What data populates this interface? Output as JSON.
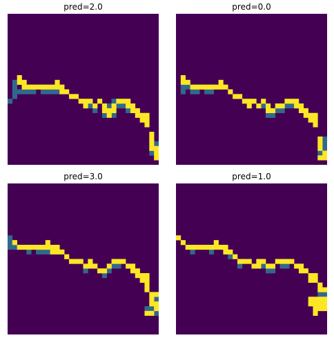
{
  "chart_data": [
    {
      "type": "heatmap",
      "title": "pred=2.0",
      "grid_size": [
        32,
        32
      ],
      "colormap": [
        "#440154",
        "#31688e",
        "#fde725"
      ],
      "cells": {
        "yellow": [
          [
            2,
            13
          ],
          [
            2,
            14
          ],
          [
            3,
            14
          ],
          [
            3,
            15
          ],
          [
            4,
            15
          ],
          [
            5,
            15
          ],
          [
            6,
            15
          ],
          [
            7,
            15
          ],
          [
            8,
            15
          ],
          [
            9,
            15
          ],
          [
            10,
            14
          ],
          [
            10,
            15
          ],
          [
            11,
            15
          ],
          [
            11,
            16
          ],
          [
            12,
            16
          ],
          [
            13,
            17
          ],
          [
            14,
            17
          ],
          [
            15,
            18
          ],
          [
            16,
            18
          ],
          [
            16,
            19
          ],
          [
            17,
            18
          ],
          [
            18,
            19
          ],
          [
            19,
            18
          ],
          [
            20,
            19
          ],
          [
            20,
            20
          ],
          [
            21,
            20
          ],
          [
            21,
            21
          ],
          [
            22,
            19
          ],
          [
            22,
            20
          ],
          [
            23,
            18
          ],
          [
            24,
            18
          ],
          [
            25,
            18
          ],
          [
            25,
            19
          ],
          [
            26,
            19
          ],
          [
            26,
            20
          ],
          [
            27,
            20
          ],
          [
            27,
            21
          ],
          [
            28,
            21
          ],
          [
            28,
            22
          ],
          [
            29,
            21
          ],
          [
            29,
            22
          ],
          [
            29,
            23
          ],
          [
            30,
            25
          ],
          [
            30,
            26
          ],
          [
            30,
            27
          ],
          [
            30,
            28
          ],
          [
            31,
            28
          ],
          [
            31,
            29
          ],
          [
            31,
            30
          ]
        ],
        "teal": [
          [
            0,
            18
          ],
          [
            1,
            17
          ],
          [
            1,
            16
          ],
          [
            1,
            15
          ],
          [
            1,
            14
          ],
          [
            2,
            16
          ],
          [
            3,
            16
          ],
          [
            4,
            16
          ],
          [
            5,
            16
          ],
          [
            7,
            16
          ],
          [
            8,
            16
          ],
          [
            9,
            16
          ],
          [
            10,
            16
          ],
          [
            17,
            19
          ],
          [
            18,
            20
          ],
          [
            20,
            21
          ],
          [
            21,
            19
          ],
          [
            22,
            21
          ],
          [
            22,
            18
          ],
          [
            23,
            19
          ],
          [
            24,
            19
          ],
          [
            25,
            20
          ],
          [
            30,
            29
          ],
          [
            31,
            27
          ],
          [
            31,
            28
          ]
        ]
      }
    },
    {
      "type": "heatmap",
      "title": "pred=0.0",
      "grid_size": [
        32,
        32
      ],
      "colormap": [
        "#440154",
        "#31688e",
        "#fde725"
      ],
      "cells": {
        "yellow": [
          [
            1,
            13
          ],
          [
            1,
            14
          ],
          [
            2,
            14
          ],
          [
            3,
            15
          ],
          [
            4,
            15
          ],
          [
            5,
            15
          ],
          [
            6,
            15
          ],
          [
            7,
            15
          ],
          [
            8,
            15
          ],
          [
            9,
            14
          ],
          [
            9,
            15
          ],
          [
            10,
            15
          ],
          [
            11,
            16
          ],
          [
            12,
            17
          ],
          [
            13,
            17
          ],
          [
            14,
            18
          ],
          [
            15,
            18
          ],
          [
            15,
            19
          ],
          [
            16,
            18
          ],
          [
            17,
            19
          ],
          [
            18,
            18
          ],
          [
            19,
            19
          ],
          [
            19,
            20
          ],
          [
            20,
            20
          ],
          [
            21,
            19
          ],
          [
            22,
            19
          ],
          [
            23,
            18
          ],
          [
            24,
            18
          ],
          [
            25,
            18
          ],
          [
            25,
            19
          ],
          [
            26,
            19
          ],
          [
            26,
            20
          ],
          [
            27,
            20
          ],
          [
            27,
            21
          ],
          [
            28,
            21
          ],
          [
            28,
            22
          ],
          [
            29,
            21
          ],
          [
            29,
            22
          ],
          [
            29,
            23
          ],
          [
            30,
            26
          ],
          [
            30,
            27
          ],
          [
            30,
            28
          ],
          [
            31,
            29
          ],
          [
            31,
            30
          ],
          [
            30,
            30
          ]
        ],
        "teal": [
          [
            1,
            15
          ],
          [
            1,
            16
          ],
          [
            2,
            15
          ],
          [
            3,
            16
          ],
          [
            4,
            16
          ],
          [
            6,
            16
          ],
          [
            7,
            16
          ],
          [
            18,
            19
          ],
          [
            19,
            21
          ],
          [
            20,
            21
          ],
          [
            21,
            20
          ],
          [
            22,
            20
          ],
          [
            23,
            19
          ],
          [
            24,
            19
          ],
          [
            30,
            29
          ],
          [
            31,
            28
          ],
          [
            31,
            27
          ],
          [
            31,
            26
          ],
          [
            32,
            25
          ]
        ]
      }
    },
    {
      "type": "heatmap",
      "title": "pred=3.0",
      "grid_size": [
        32,
        32
      ],
      "colormap": [
        "#440154",
        "#31688e",
        "#fde725"
      ],
      "cells": {
        "yellow": [
          [
            1,
            12
          ],
          [
            2,
            13
          ],
          [
            3,
            13
          ],
          [
            4,
            13
          ],
          [
            5,
            13
          ],
          [
            6,
            13
          ],
          [
            7,
            13
          ],
          [
            8,
            13
          ],
          [
            8,
            12
          ],
          [
            9,
            13
          ],
          [
            10,
            13
          ],
          [
            9,
            14
          ],
          [
            10,
            14
          ],
          [
            11,
            14
          ],
          [
            12,
            15
          ],
          [
            13,
            16
          ],
          [
            14,
            16
          ],
          [
            15,
            16
          ],
          [
            16,
            17
          ],
          [
            17,
            16
          ],
          [
            17,
            17
          ],
          [
            18,
            17
          ],
          [
            19,
            18
          ],
          [
            20,
            18
          ],
          [
            21,
            17
          ],
          [
            22,
            16
          ],
          [
            23,
            16
          ],
          [
            24,
            16
          ],
          [
            25,
            17
          ],
          [
            26,
            17
          ],
          [
            26,
            18
          ],
          [
            27,
            18
          ],
          [
            27,
            19
          ],
          [
            28,
            19
          ],
          [
            28,
            20
          ],
          [
            29,
            19
          ],
          [
            29,
            20
          ],
          [
            29,
            21
          ],
          [
            29,
            22
          ],
          [
            30,
            23
          ],
          [
            30,
            24
          ],
          [
            30,
            25
          ],
          [
            31,
            25
          ],
          [
            31,
            26
          ],
          [
            30,
            27
          ],
          [
            29,
            27
          ],
          [
            31,
            23
          ],
          [
            32,
            23
          ]
        ],
        "teal": [
          [
            0,
            11
          ],
          [
            0,
            12
          ],
          [
            0,
            13
          ],
          [
            1,
            13
          ],
          [
            2,
            13
          ],
          [
            4,
            14
          ],
          [
            6,
            14
          ],
          [
            7,
            14
          ],
          [
            8,
            14
          ],
          [
            16,
            18
          ],
          [
            20,
            19
          ],
          [
            21,
            18
          ],
          [
            22,
            17
          ],
          [
            23,
            17
          ],
          [
            31,
            24
          ],
          [
            30,
            26
          ],
          [
            29,
            26
          ],
          [
            31,
            27
          ]
        ]
      }
    },
    {
      "type": "heatmap",
      "title": "pred=1.0",
      "grid_size": [
        32,
        32
      ],
      "colormap": [
        "#440154",
        "#31688e",
        "#fde725"
      ],
      "cells": {
        "yellow": [
          [
            0,
            11
          ],
          [
            1,
            12
          ],
          [
            2,
            13
          ],
          [
            3,
            13
          ],
          [
            4,
            13
          ],
          [
            5,
            13
          ],
          [
            6,
            13
          ],
          [
            7,
            13
          ],
          [
            8,
            13
          ],
          [
            8,
            12
          ],
          [
            9,
            13
          ],
          [
            10,
            13
          ],
          [
            10,
            14
          ],
          [
            11,
            14
          ],
          [
            12,
            15
          ],
          [
            13,
            16
          ],
          [
            14,
            16
          ],
          [
            15,
            16
          ],
          [
            16,
            17
          ],
          [
            17,
            16
          ],
          [
            17,
            17
          ],
          [
            18,
            16
          ],
          [
            19,
            17
          ],
          [
            20,
            17
          ],
          [
            21,
            16
          ],
          [
            22,
            16
          ],
          [
            23,
            16
          ],
          [
            24,
            16
          ],
          [
            25,
            17
          ],
          [
            26,
            17
          ],
          [
            26,
            18
          ],
          [
            27,
            18
          ],
          [
            28,
            19
          ],
          [
            28,
            20
          ],
          [
            29,
            19
          ],
          [
            29,
            20
          ],
          [
            30,
            21
          ],
          [
            30,
            22
          ],
          [
            31,
            22
          ],
          [
            28,
            24
          ],
          [
            28,
            25
          ],
          [
            29,
            25
          ],
          [
            29,
            24
          ],
          [
            30,
            24
          ],
          [
            30,
            25
          ],
          [
            31,
            24
          ],
          [
            31,
            25
          ],
          [
            30,
            26
          ],
          [
            29,
            26
          ],
          [
            29,
            27
          ],
          [
            31,
            26
          ]
        ],
        "teal": [
          [
            3,
            14
          ],
          [
            7,
            14
          ],
          [
            11,
            15
          ],
          [
            13,
            17
          ],
          [
            18,
            17
          ],
          [
            19,
            18
          ],
          [
            20,
            18
          ],
          [
            22,
            17
          ],
          [
            23,
            17
          ],
          [
            30,
            23
          ],
          [
            30,
            24
          ],
          [
            31,
            23
          ],
          [
            32,
            22
          ],
          [
            32,
            23
          ],
          [
            32,
            24
          ]
        ]
      }
    }
  ]
}
